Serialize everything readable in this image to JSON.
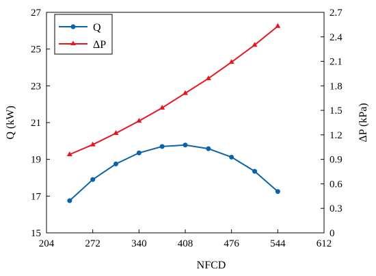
{
  "chart_data": {
    "type": "line",
    "x": [
      238,
      272,
      306,
      340,
      374,
      408,
      442,
      476,
      510,
      544
    ],
    "xlabel": "NFCD",
    "xlim": [
      204,
      612
    ],
    "xticks": [
      "204",
      "272",
      "340",
      "408",
      "476",
      "544",
      "612"
    ],
    "ylabel_left": "Q (kW)",
    "ylim_left": [
      15,
      27
    ],
    "yticks_left": [
      "15",
      "17",
      "19",
      "21",
      "23",
      "25",
      "27"
    ],
    "ylabel_right": "ΔP (kPa)",
    "ylim_right": [
      0,
      2.7
    ],
    "yticks_right": [
      "0",
      "0.3",
      "0.6",
      "0.9",
      "1.2",
      "1.5",
      "1.8",
      "2.1",
      "2.4",
      "2.7"
    ],
    "series": [
      {
        "name": "Q",
        "axis": "left",
        "color": "#0a62a8",
        "marker": "circle",
        "values": [
          16.75,
          17.9,
          18.75,
          19.35,
          19.7,
          19.78,
          19.58,
          19.12,
          18.35,
          17.25
        ]
      },
      {
        "name": "ΔP",
        "axis": "right",
        "color": "#e8141e",
        "marker": "triangle",
        "values": [
          0.96,
          1.08,
          1.22,
          1.37,
          1.53,
          1.71,
          1.89,
          2.09,
          2.3,
          2.53
        ]
      }
    ],
    "legend_position": "top-left",
    "grid": false
  }
}
